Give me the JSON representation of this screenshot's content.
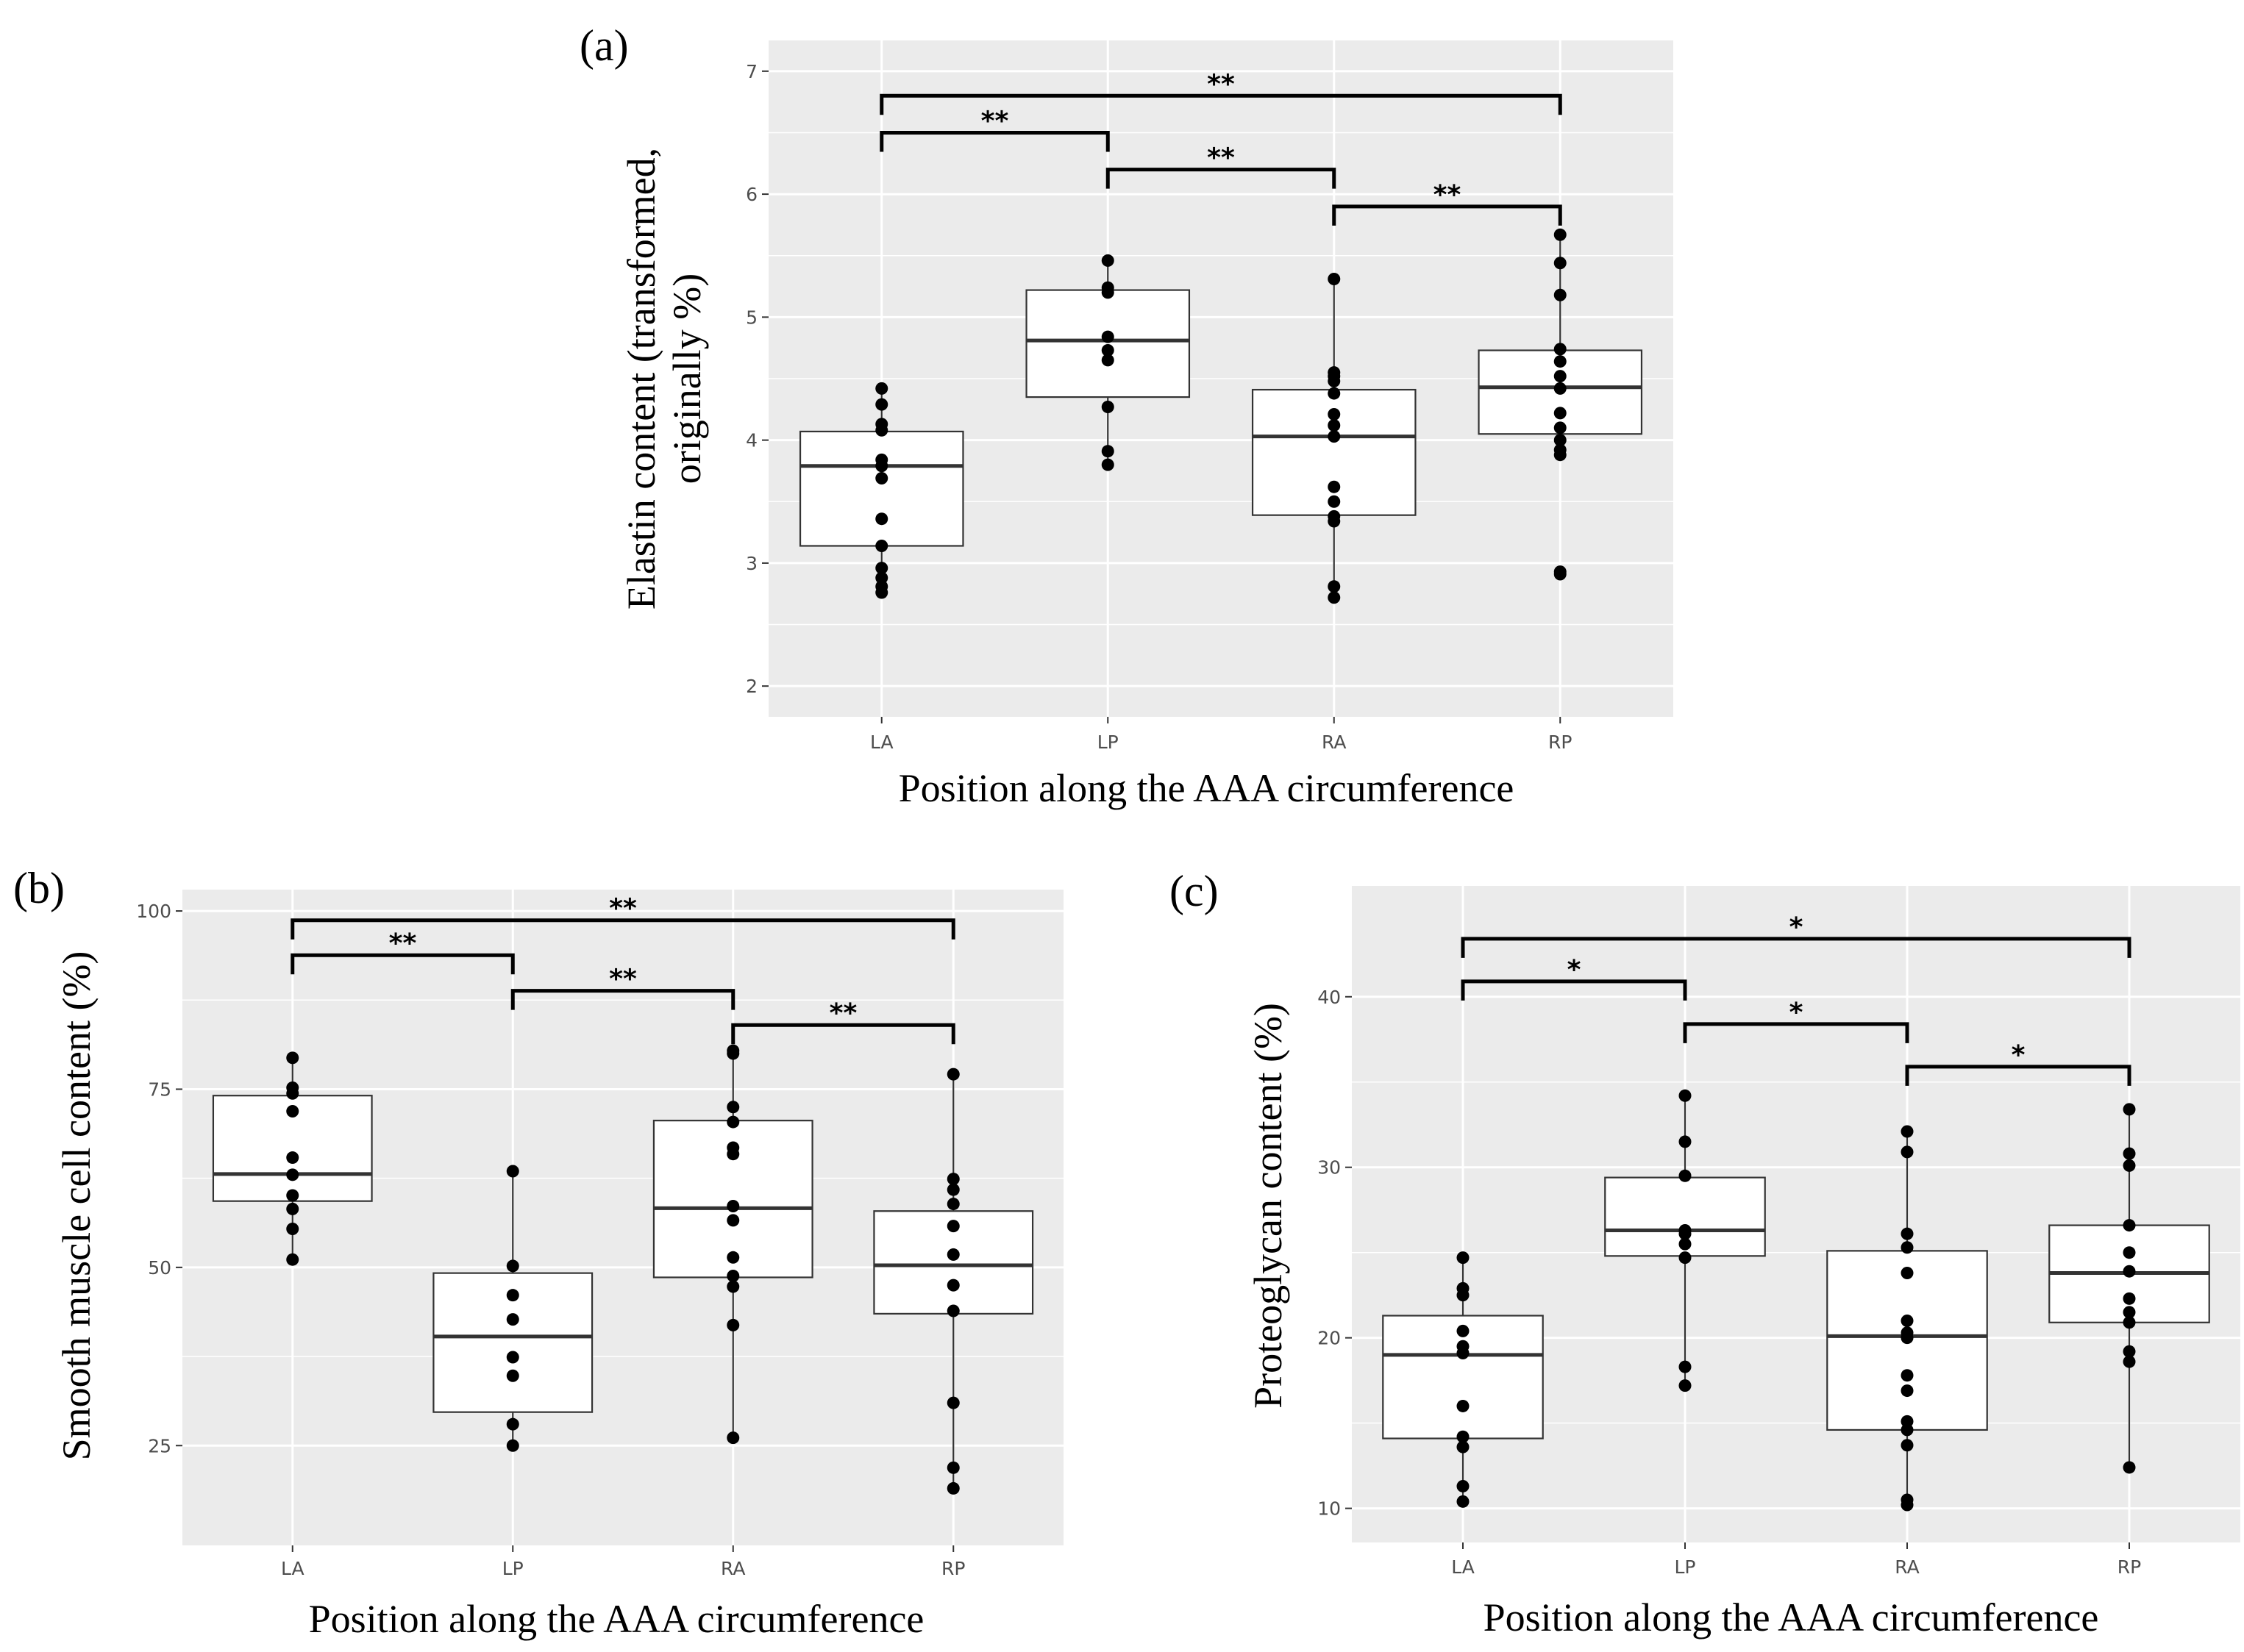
{
  "chart_data": [
    {
      "type": "box",
      "panel_label": "(a)",
      "title": "",
      "xlabel": "Position along the AAA circumference",
      "ylabel": "Elastin content (transformed, originally %)",
      "ylabel_lines": [
        "Elastin content (transformed,",
        "originally %)"
      ],
      "categories": [
        "LA",
        "LP",
        "RA",
        "RP"
      ],
      "yticks": [
        "2",
        "3",
        "4",
        "5",
        "6",
        "7"
      ],
      "ylim": [
        1.75,
        7.25
      ],
      "grid": true,
      "boxes": [
        {
          "category": "LA",
          "q1": 3.14,
          "median": 3.79,
          "q3": 4.07,
          "whisker_low": 2.76,
          "whisker_high": 4.42
        },
        {
          "category": "LP",
          "q1": 4.35,
          "median": 4.81,
          "q3": 5.22,
          "whisker_low": 3.8,
          "whisker_high": 5.46
        },
        {
          "category": "RA",
          "q1": 3.39,
          "median": 4.03,
          "q3": 4.41,
          "whisker_low": 2.72,
          "whisker_high": 5.31
        },
        {
          "category": "RP",
          "q1": 4.05,
          "median": 4.43,
          "q3": 4.73,
          "whisker_low": 3.88,
          "whisker_high": 5.67
        }
      ],
      "points": [
        {
          "category": "LA",
          "values": [
            2.76,
            2.81,
            2.88,
            2.96,
            3.14,
            3.36,
            3.69,
            3.79,
            3.84,
            4.08,
            4.13,
            4.29,
            4.42
          ]
        },
        {
          "category": "LP",
          "values": [
            3.8,
            3.91,
            4.27,
            4.65,
            4.73,
            4.84,
            5.2,
            5.24,
            5.46
          ]
        },
        {
          "category": "RA",
          "values": [
            2.72,
            2.81,
            3.34,
            3.38,
            3.5,
            3.62,
            4.03,
            4.12,
            4.21,
            4.38,
            4.48,
            4.52,
            4.55,
            5.31
          ]
        },
        {
          "category": "RP",
          "values": [
            2.91,
            2.93,
            3.88,
            3.92,
            4.0,
            4.1,
            4.22,
            4.42,
            4.52,
            4.64,
            4.74,
            5.18,
            5.44,
            5.67
          ]
        }
      ],
      "significance": [
        {
          "from": "LA",
          "to": "RP",
          "y": 6.8,
          "label": "**"
        },
        {
          "from": "LA",
          "to": "LP",
          "y": 6.5,
          "label": "**"
        },
        {
          "from": "LP",
          "to": "RA",
          "y": 6.2,
          "label": "**"
        },
        {
          "from": "RA",
          "to": "RP",
          "y": 5.9,
          "label": "**"
        }
      ]
    },
    {
      "type": "box",
      "panel_label": "(b)",
      "title": "",
      "xlabel": "Position along the AAA circumference",
      "ylabel": "Smooth muscle cell content (%)",
      "ylabel_lines": [
        "Smooth muscle cell content (%)"
      ],
      "categories": [
        "LA",
        "LP",
        "RA",
        "RP"
      ],
      "yticks": [
        "25",
        "50",
        "75",
        "100"
      ],
      "ylim": [
        11,
        103
      ],
      "grid": true,
      "boxes": [
        {
          "category": "LA",
          "q1": 59.3,
          "median": 63.1,
          "q3": 74.1,
          "whisker_low": 51.1,
          "whisker_high": 79.4
        },
        {
          "category": "LP",
          "q1": 29.7,
          "median": 40.3,
          "q3": 49.2,
          "whisker_low": 25.0,
          "whisker_high": 63.5
        },
        {
          "category": "RA",
          "q1": 48.6,
          "median": 58.3,
          "q3": 70.6,
          "whisker_low": 26.1,
          "whisker_high": 80.4
        },
        {
          "category": "RP",
          "q1": 43.5,
          "median": 50.3,
          "q3": 57.9,
          "whisker_low": 19.0,
          "whisker_high": 77.1
        }
      ],
      "points": [
        {
          "category": "LA",
          "values": [
            51.1,
            55.4,
            58.2,
            60.1,
            63.0,
            65.4,
            71.9,
            74.4,
            75.2,
            79.4
          ]
        },
        {
          "category": "LP",
          "values": [
            25.0,
            28.0,
            34.8,
            37.4,
            42.7,
            46.1,
            50.2,
            63.5
          ]
        },
        {
          "category": "RA",
          "values": [
            26.1,
            41.9,
            47.3,
            48.8,
            51.4,
            56.6,
            58.6,
            65.9,
            66.8,
            70.4,
            72.5,
            80.0,
            80.4
          ]
        },
        {
          "category": "RP",
          "values": [
            19.0,
            21.9,
            31.0,
            43.9,
            47.5,
            51.8,
            55.8,
            58.9,
            60.9,
            62.4,
            77.1
          ]
        }
      ],
      "significance": [
        {
          "from": "LA",
          "to": "RP",
          "y": 98.7,
          "label": "**"
        },
        {
          "from": "LA",
          "to": "LP",
          "y": 93.8,
          "label": "**"
        },
        {
          "from": "LP",
          "to": "RA",
          "y": 88.8,
          "label": "**"
        },
        {
          "from": "RA",
          "to": "RP",
          "y": 84.0,
          "label": "**"
        }
      ]
    },
    {
      "type": "box",
      "panel_label": "(c)",
      "title": "",
      "xlabel": "Position along the AAA circumference",
      "ylabel": "Proteoglycan content (%)",
      "ylabel_lines": [
        "Proteoglycan content (%)"
      ],
      "categories": [
        "LA",
        "LP",
        "RA",
        "RP"
      ],
      "yticks": [
        "10",
        "20",
        "30",
        "40"
      ],
      "ylim": [
        8,
        46.5
      ],
      "grid": true,
      "boxes": [
        {
          "category": "LA",
          "q1": 14.1,
          "median": 19.0,
          "q3": 21.3,
          "whisker_low": 10.4,
          "whisker_high": 24.7
        },
        {
          "category": "LP",
          "q1": 24.8,
          "median": 26.3,
          "q3": 29.4,
          "whisker_low": 17.2,
          "whisker_high": 34.2
        },
        {
          "category": "RA",
          "q1": 14.6,
          "median": 20.1,
          "q3": 25.1,
          "whisker_low": 10.2,
          "whisker_high": 32.1
        },
        {
          "category": "RP",
          "q1": 20.9,
          "median": 23.8,
          "q3": 26.6,
          "whisker_low": 12.4,
          "whisker_high": 33.4
        }
      ],
      "points": [
        {
          "category": "LA",
          "values": [
            10.4,
            11.3,
            13.6,
            14.2,
            16.0,
            19.1,
            19.5,
            20.4,
            22.5,
            22.9,
            24.7
          ]
        },
        {
          "category": "LP",
          "values": [
            17.2,
            18.3,
            24.7,
            25.5,
            26.1,
            26.3,
            29.5,
            31.5,
            34.2
          ]
        },
        {
          "category": "RA",
          "values": [
            10.2,
            10.5,
            13.7,
            14.6,
            15.1,
            16.9,
            17.8,
            20.0,
            20.3,
            21.0,
            23.8,
            25.3,
            26.1,
            30.9,
            32.1
          ]
        },
        {
          "category": "RP",
          "values": [
            12.4,
            18.6,
            19.2,
            20.9,
            21.5,
            22.3,
            23.9,
            25.0,
            26.6,
            30.1,
            30.8,
            33.4
          ]
        }
      ],
      "significance": [
        {
          "from": "LA",
          "to": "RP",
          "y": 43.4,
          "label": "*"
        },
        {
          "from": "LA",
          "to": "LP",
          "y": 40.9,
          "label": "*"
        },
        {
          "from": "LP",
          "to": "RA",
          "y": 38.4,
          "label": "*"
        },
        {
          "from": "RA",
          "to": "RP",
          "y": 35.9,
          "label": "*"
        }
      ]
    }
  ]
}
